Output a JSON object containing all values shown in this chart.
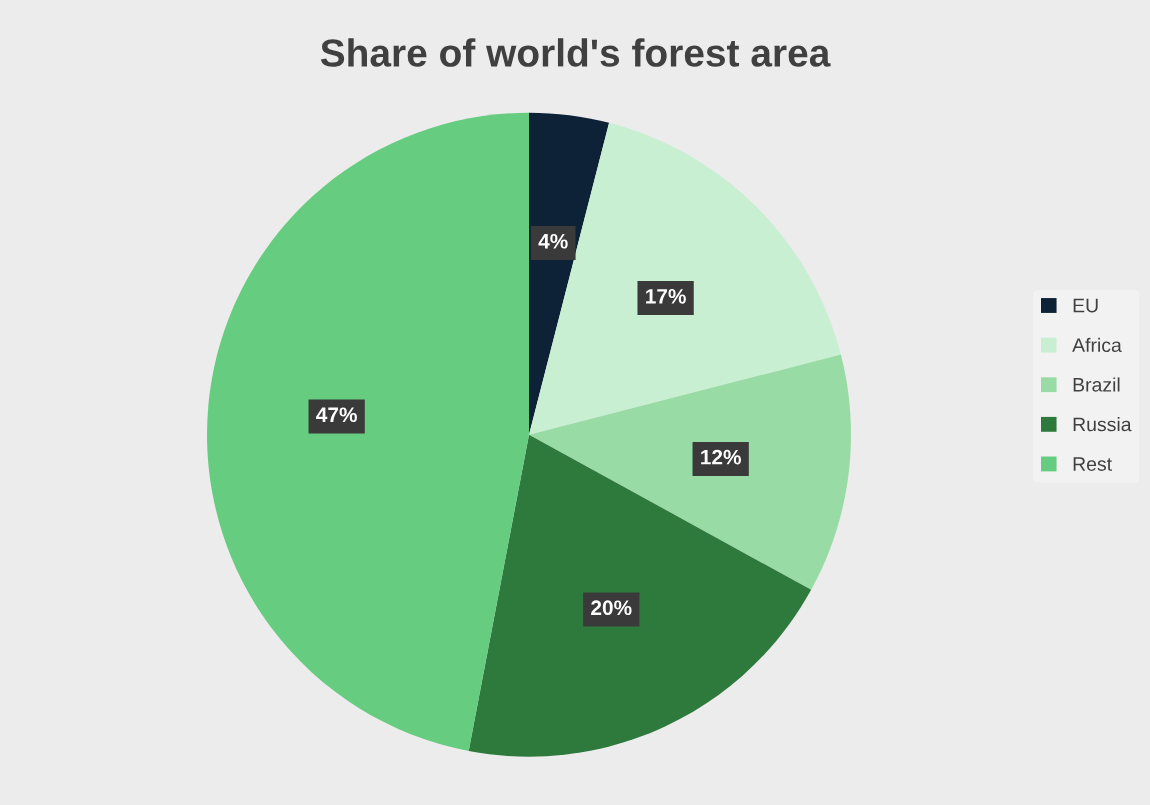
{
  "chart_data": {
    "type": "pie",
    "title": "Share of world's forest area",
    "categories": [
      "EU",
      "Africa",
      "Brazil",
      "Russia",
      "Rest"
    ],
    "values": [
      4,
      17,
      12,
      20,
      47
    ],
    "value_labels": [
      "4%",
      "17%",
      "12%",
      "20%",
      "47%"
    ],
    "colors": [
      "#0d2137",
      "#c9efd3",
      "#99dba5",
      "#2e7a3d",
      "#66cc7f"
    ],
    "legend": "right"
  }
}
